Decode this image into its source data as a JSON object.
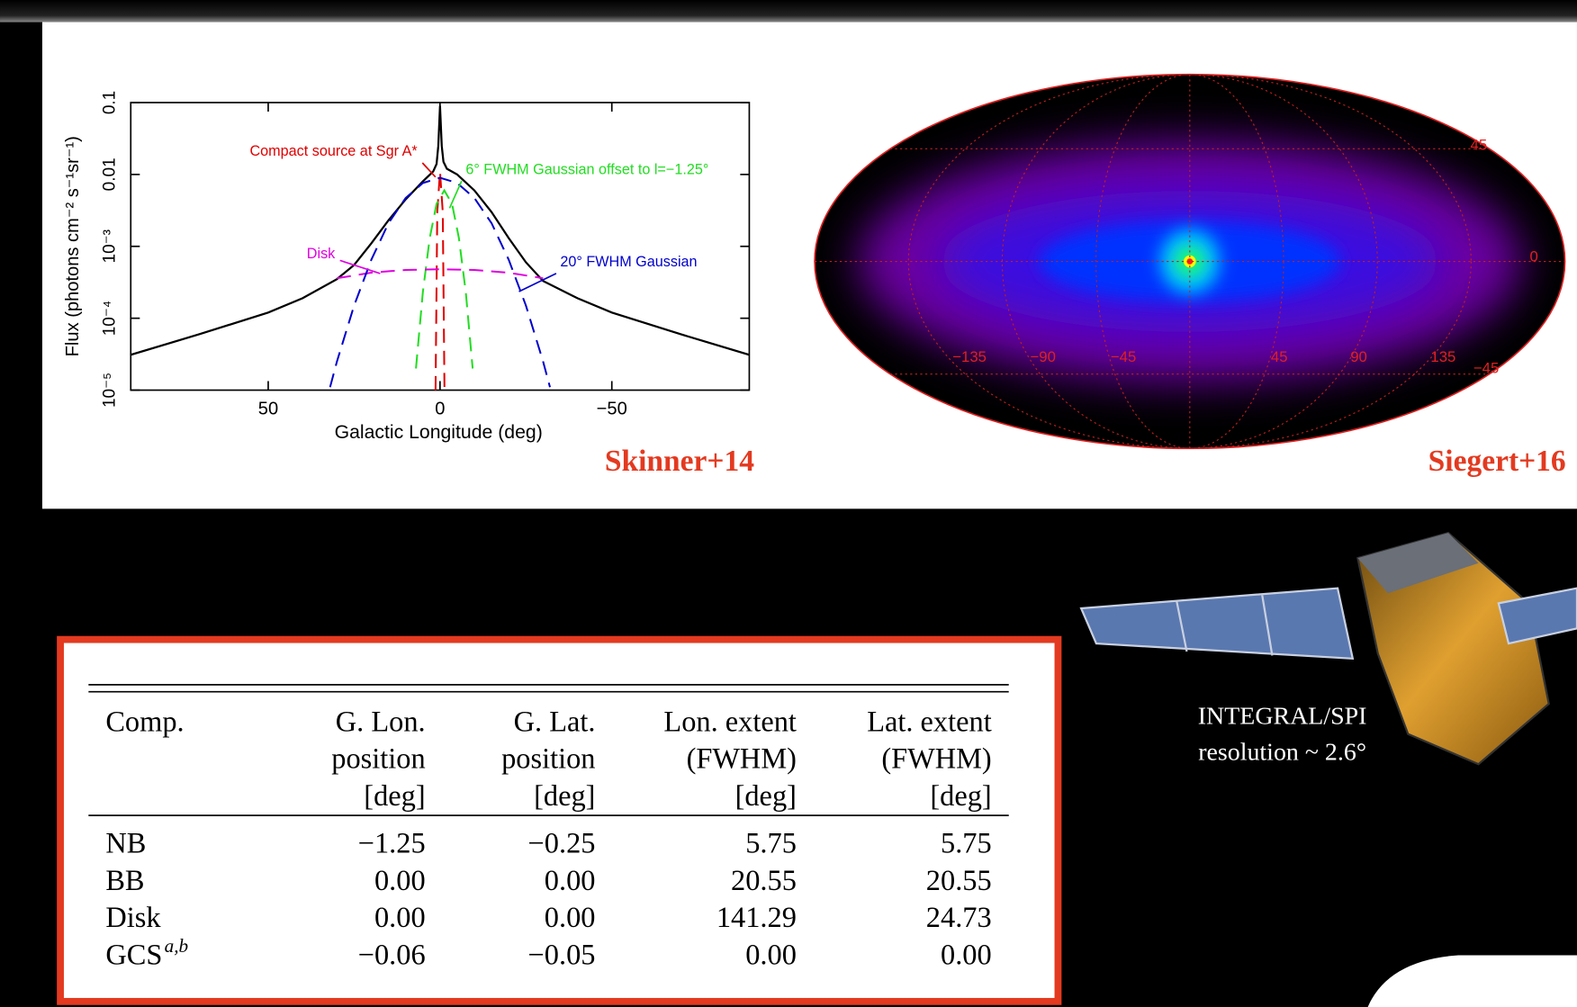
{
  "chart_data": {
    "type": "line",
    "log_y": true,
    "xlabel": "Galactic Longitude (deg)",
    "ylabel": "Flux (photons cm⁻² s⁻¹sr⁻¹)",
    "xlim": [
      90,
      -90
    ],
    "ylim": [
      1e-05,
      0.1
    ],
    "xticks": [
      50,
      0,
      {
        "value": -50,
        "label": "−50"
      }
    ],
    "yticks": [
      {
        "value": 1e-05,
        "label": "10⁻⁵"
      },
      {
        "value": 0.0001,
        "label": "10⁻⁴"
      },
      {
        "value": 0.001,
        "label": "10⁻³"
      },
      0.01,
      0.1
    ],
    "series": [
      {
        "color": "#000000",
        "dashed": false,
        "x": [
          90,
          70,
          50,
          40,
          30,
          25,
          20,
          15,
          10,
          5,
          2,
          1,
          0.5,
          0,
          -0.5,
          -1,
          -2,
          -5,
          -10,
          -15,
          -20,
          -25,
          -30,
          -40,
          -50,
          -70,
          -90
        ],
        "values": [
          3.1e-05,
          6e-05,
          0.00012,
          0.00019,
          0.00035,
          0.00055,
          0.0011,
          0.0023,
          0.0045,
          0.008,
          0.011,
          0.014,
          0.025,
          0.09,
          0.025,
          0.015,
          0.012,
          0.01,
          0.006,
          0.003,
          0.0013,
          0.0006,
          0.00033,
          0.00019,
          0.00012,
          6e-05,
          3.1e-05
        ]
      },
      {
        "name": "Compact source at Sgr A*",
        "color": "#e00000",
        "dashed": true,
        "x": [
          1.3,
          0.8,
          0,
          -0.8,
          -1.3
        ],
        "values": [
          1e-05,
          0.003,
          0.011,
          0.003,
          1e-05
        ]
      },
      {
        "name": "6° FWHM Gaussian offset to l=−1.25°",
        "color": "#22dd22",
        "dashed": true,
        "x": [
          7,
          5,
          3,
          1,
          -1.25,
          -3.5,
          -5.5,
          -7.5,
          -9.5
        ],
        "values": [
          2e-05,
          0.00023,
          0.0013,
          0.0039,
          0.006,
          0.0039,
          0.0013,
          0.00023,
          2e-05
        ]
      },
      {
        "name": "Disk",
        "color": "#e000e0",
        "dashed": true,
        "x": [
          30,
          20,
          10,
          0,
          -10,
          -20,
          -30
        ],
        "values": [
          0.00036,
          0.00043,
          0.00047,
          0.00048,
          0.00047,
          0.00043,
          0.00036
        ]
      },
      {
        "name": "20° FWHM Gaussian",
        "color": "#0000cc",
        "dashed": true,
        "x": [
          32,
          30,
          25,
          20,
          15,
          10,
          5,
          0,
          -5,
          -10,
          -15,
          -20,
          -25,
          -30,
          -32
        ],
        "values": [
          1.1e-05,
          2.5e-05,
          0.00015,
          0.00065,
          0.0021,
          0.0047,
          0.0076,
          0.009,
          0.0076,
          0.0047,
          0.0021,
          0.00065,
          0.00015,
          2.5e-05,
          1.1e-05
        ]
      }
    ]
  },
  "credits": {
    "left": "Skinner+14",
    "right": "Siegert+16"
  },
  "sky_map": {
    "lat_labels": [
      "45",
      "0",
      "−45"
    ],
    "lon_labels": [
      "−135",
      "−90",
      "−45",
      "45",
      "90",
      "135"
    ]
  },
  "satellite": {
    "caption": [
      "INTEGRAL/SPI",
      "resolution ~ 2.6°"
    ]
  },
  "table": {
    "header": [
      [
        "Comp."
      ],
      [
        "G. Lon.",
        "position",
        "[deg]"
      ],
      [
        "G. Lat.",
        "position",
        "[deg]"
      ],
      [
        "Lon. extent",
        "(FWHM)",
        "[deg]"
      ],
      [
        "Lat. extent",
        "(FWHM)",
        "[deg]"
      ]
    ],
    "rows": [
      [
        "NB",
        "−1.25",
        "−0.25",
        "5.75",
        "5.75"
      ],
      [
        "BB",
        "0.00",
        "0.00",
        "20.55",
        "20.55"
      ],
      [
        "Disk",
        "0.00",
        "0.00",
        "141.29",
        "24.73"
      ],
      [
        "GCS",
        "−0.06",
        "−0.05",
        "0.00",
        "0.00"
      ]
    ],
    "gcs_marks": "a,b"
  }
}
